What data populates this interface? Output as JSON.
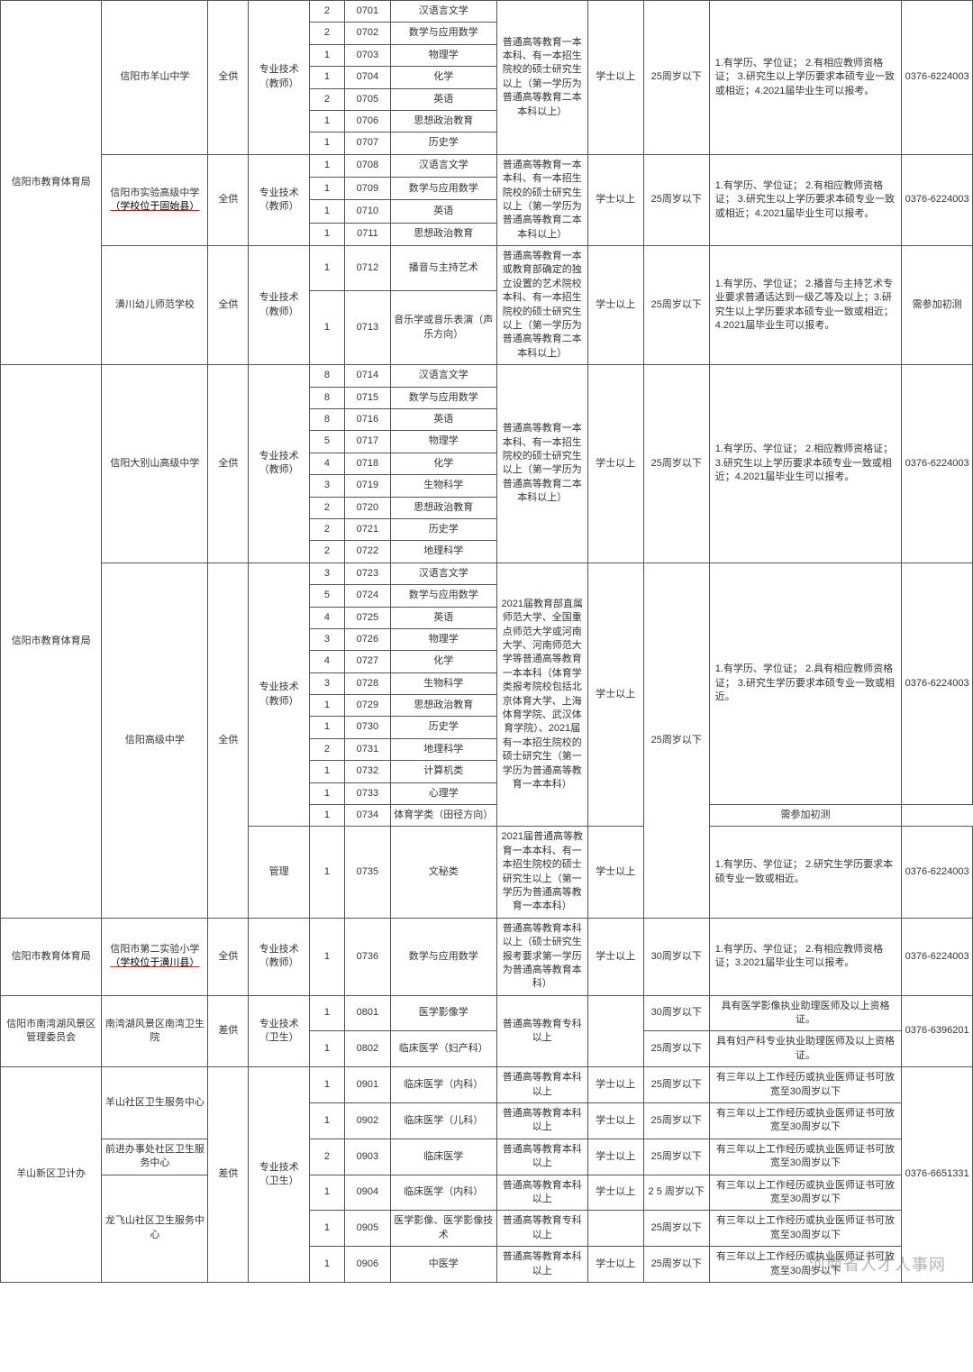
{
  "watermark": "河南省人才人事网",
  "phones": {
    "p1": "0376-6224003",
    "p2": "0376-6396201",
    "p3": "0376-6651331"
  },
  "common": {
    "degree_bachelor": "学士以上",
    "age25": "25周岁以下",
    "age25b": "2 5 周岁以下",
    "age30": "30周岁以下",
    "supply_full": "全供",
    "supply_diff": "差供",
    "pos_teacher": "专业技术（教师）",
    "pos_health": "专业技术（卫生）",
    "pos_mgmt": "管理",
    "edu_a": "普通高等教育一本本科、有一本招生院校的硕士研究生以上（第一学历为普通高等教育二本本科以上）",
    "edu_b": "普通高等教育一本或教育部确定的独立设置的艺术院校本科、有一本招生院校的硕士研究生以上（第一学历为普通高等教育二本本科以上）",
    "edu_c": "2021届教育部直属师范大学、全国重点师范大学或河南大学、河南师范大学等普通高等教育一本本科（体育学类报考院校包括北京体育大学、上海体育学院、武汉体育学院）、2021届有一本招生院校的硕士研究生（第一学历为普通高等教育一本本科）",
    "edu_d": "2021届普通高等教育一本本科、有一本招生院校的硕士研究生以上（第一学历为普通高等教育一本本科）",
    "edu_e": "普通高等教育本科以上（硕士研究生报考要求第一学历为普通高等教育本科）",
    "edu_f": "普通高等教育专科以上",
    "edu_g": "普通高等教育本科以上",
    "req1": "1.有学历、学位证；\n2.有相应教师资格证；\n3.研究生以上学历要求本硕专业一致或相近；4.2021届毕业生可以报考。",
    "req2": "1.有学历、学位证；\n2.有相应教师资格证；\n3.研究生以上学历要求本硕专业一致或相近；4.2021届毕业生可以报考。",
    "req3": "1.有学历、学位证；\n2.播音与主持艺术专业要求普通话达到一级乙等及以上；3.研究生以上学历要求本硕专业一致或相近；4.2021届毕业生可以报考。",
    "req4": "1.有学历、学位证；\n2.相应教师资格证；\n3.研究生以上学历要求本硕专业一致或相近；4.2021届毕业生可以报考。",
    "req5": "1.有学历、学位证；\n2.具有相应教师资格证；\n3.研究生学历要求本硕专业一致或相近。",
    "req6": "1.有学历、学位证；\n2.研究生学历要求本硕专业一致或相近。",
    "req7": "1.有学历、学位证；\n2.有相应教师资格证；3.2021届毕业生可以报考。",
    "req8a": "具有医学影像执业助理医师及以上资格证。",
    "req8b": "具有妇产科专业执业助理医师及以上资格证。",
    "req9": "有三年以上工作经历或执业医师证书可放宽至30周岁以下",
    "note_test": "需参加初测"
  },
  "blocks": [
    {
      "dept": "信阳市教育体育局",
      "units": [
        {
          "name": "信阳市羊山中学",
          "supply_key": "supply_full",
          "pos_key": "pos_teacher",
          "edu_key": "edu_a",
          "degree_key": "degree_bachelor",
          "age_key": "age25",
          "req_key": "req1",
          "phone_key": "p1",
          "rows": [
            {
              "n": "2",
              "code": "0701",
              "sub": "汉语言文学"
            },
            {
              "n": "2",
              "code": "0702",
              "sub": "数学与应用数学"
            },
            {
              "n": "1",
              "code": "0703",
              "sub": "物理学"
            },
            {
              "n": "1",
              "code": "0704",
              "sub": "化学"
            },
            {
              "n": "2",
              "code": "0705",
              "sub": "英语"
            },
            {
              "n": "1",
              "code": "0706",
              "sub": "思想政治教育"
            },
            {
              "n": "1",
              "code": "0707",
              "sub": "历史学"
            }
          ]
        },
        {
          "name_html": "信阳市实验高级中学<br><span class='redline'>（学校位于固始县）</span>",
          "supply_key": "supply_full",
          "pos_key": "pos_teacher",
          "edu_key": "edu_a",
          "degree_key": "degree_bachelor",
          "age_key": "age25",
          "req_key": "req2",
          "phone_key": "p1",
          "rows": [
            {
              "n": "1",
              "code": "0708",
              "sub": "汉语言文学"
            },
            {
              "n": "1",
              "code": "0709",
              "sub": "数学与应用数学"
            },
            {
              "n": "1",
              "code": "0710",
              "sub": "英语"
            },
            {
              "n": "1",
              "code": "0711",
              "sub": "思想政治教育"
            }
          ]
        },
        {
          "name": "潢川幼儿师范学校",
          "supply_key": "supply_full",
          "pos_key": "pos_teacher",
          "edu_key": "edu_b",
          "degree_key": "degree_bachelor",
          "age_key": "age25",
          "req_key": "req3",
          "phone_key": "p1",
          "note_key": "note_test",
          "rows": [
            {
              "n": "1",
              "code": "0712",
              "sub": "播音与主持艺术"
            },
            {
              "n": "1",
              "code": "0713",
              "sub": "音乐学或音乐表演（声乐方向）"
            }
          ]
        }
      ]
    },
    {
      "dept": "信阳市教育体育局",
      "units": [
        {
          "name": "信阳大别山高级中学",
          "supply_key": "supply_full",
          "pos_key": "pos_teacher",
          "edu_key": "edu_a",
          "degree_key": "degree_bachelor",
          "age_key": "age25",
          "req_key": "req4",
          "phone_key": "p1",
          "rows": [
            {
              "n": "8",
              "code": "0714",
              "sub": "汉语言文学"
            },
            {
              "n": "8",
              "code": "0715",
              "sub": "数学与应用数学"
            },
            {
              "n": "8",
              "code": "0716",
              "sub": "英语"
            },
            {
              "n": "5",
              "code": "0717",
              "sub": "物理学"
            },
            {
              "n": "4",
              "code": "0718",
              "sub": "化学"
            },
            {
              "n": "3",
              "code": "0719",
              "sub": "生物科学"
            },
            {
              "n": "2",
              "code": "0720",
              "sub": "思想政治教育"
            },
            {
              "n": "2",
              "code": "0721",
              "sub": "历史学"
            },
            {
              "n": "2",
              "code": "0722",
              "sub": "地理科学"
            }
          ]
        },
        {
          "name": "信阳高级中学",
          "supply_key": "supply_full",
          "groups": [
            {
              "pos_key": "pos_teacher",
              "edu_key": "edu_c",
              "degree_key": "degree_bachelor",
              "age_key": "age25",
              "req_key": "req5",
              "phone_key": "p1",
              "rows": [
                {
                  "n": "3",
                  "code": "0723",
                  "sub": "汉语言文学"
                },
                {
                  "n": "5",
                  "code": "0724",
                  "sub": "数学与应用数学"
                },
                {
                  "n": "4",
                  "code": "0725",
                  "sub": "英语"
                },
                {
                  "n": "3",
                  "code": "0726",
                  "sub": "物理学"
                },
                {
                  "n": "4",
                  "code": "0727",
                  "sub": "化学"
                },
                {
                  "n": "3",
                  "code": "0728",
                  "sub": "生物科学"
                },
                {
                  "n": "1",
                  "code": "0729",
                  "sub": "思想政治教育"
                },
                {
                  "n": "1",
                  "code": "0730",
                  "sub": "历史学"
                },
                {
                  "n": "2",
                  "code": "0731",
                  "sub": "地理科学"
                },
                {
                  "n": "1",
                  "code": "0732",
                  "sub": "计算机类"
                },
                {
                  "n": "1",
                  "code": "0733",
                  "sub": "心理学"
                },
                {
                  "n": "1",
                  "code": "0734",
                  "sub": "体育学类（田径方向）",
                  "note_key": "note_test"
                }
              ]
            },
            {
              "pos_key": "pos_mgmt",
              "edu_key": "edu_d",
              "degree_key": "degree_bachelor",
              "req_key": "req6",
              "phone_key": "p1",
              "rows": [
                {
                  "n": "1",
                  "code": "0735",
                  "sub": "文秘类"
                }
              ]
            }
          ]
        }
      ]
    },
    {
      "dept": "信阳市教育体育局",
      "units": [
        {
          "name_html": "信阳市第二实验小学<br><span class='redline'>（学校位于潢川县）</span>",
          "supply_key": "supply_full",
          "pos_key": "pos_teacher",
          "edu_key": "edu_e",
          "degree_key": "degree_bachelor",
          "age_key": "age30",
          "req_key": "req7",
          "phone_key": "p1",
          "rows": [
            {
              "n": "1",
              "code": "0736",
              "sub": "数学与应用数学"
            }
          ]
        }
      ]
    },
    {
      "dept": "信阳市南湾湖风景区管理委员会",
      "units": [
        {
          "name": "南湾湖风景区南湾卫生院",
          "supply_key": "supply_diff",
          "pos_key": "pos_health",
          "edu_key": "edu_f",
          "phone_key": "p2",
          "rows": [
            {
              "n": "1",
              "code": "0801",
              "sub": "医学影像学",
              "age_key": "age30",
              "req_key": "req8a"
            },
            {
              "n": "1",
              "code": "0802",
              "sub": "临床医学（妇产科）",
              "age_key": "age25",
              "req_key": "req8b"
            }
          ]
        }
      ]
    },
    {
      "dept": "羊山新区卫计办",
      "supply_key": "supply_diff",
      "pos_key": "pos_health",
      "phone_key": "p3",
      "units": [
        {
          "name": "羊山社区卫生服务中心",
          "rows": [
            {
              "n": "1",
              "code": "0901",
              "sub": "临床医学（内科）",
              "edu_key": "edu_g",
              "degree_key": "degree_bachelor",
              "age_key": "age25",
              "req_key": "req9"
            },
            {
              "n": "1",
              "code": "0902",
              "sub": "临床医学（儿科）",
              "edu_key": "edu_g",
              "degree_key": "degree_bachelor",
              "age_key": "age25",
              "req_key": "req9"
            }
          ]
        },
        {
          "name": "前进办事处社区卫生服务中心",
          "rows": [
            {
              "n": "2",
              "code": "0903",
              "sub": "临床医学",
              "edu_key": "edu_g",
              "degree_key": "degree_bachelor",
              "age_key": "age25",
              "req_key": "req9"
            }
          ]
        },
        {
          "name": "龙飞山社区卫生服务中心",
          "rows": [
            {
              "n": "1",
              "code": "0904",
              "sub": "临床医学（内科）",
              "edu_key": "edu_g",
              "degree_key": "degree_bachelor",
              "age_key": "age25b",
              "req_key": "req9"
            },
            {
              "n": "1",
              "code": "0905",
              "sub": "医学影像、医学影像技术",
              "edu_key": "edu_f",
              "age_key": "age25",
              "req_key": "req9"
            },
            {
              "n": "1",
              "code": "0906",
              "sub": "中医学",
              "edu_key": "edu_g",
              "degree_key": "degree_bachelor",
              "age_key": "age25",
              "req_key": "req9"
            }
          ]
        }
      ]
    }
  ]
}
